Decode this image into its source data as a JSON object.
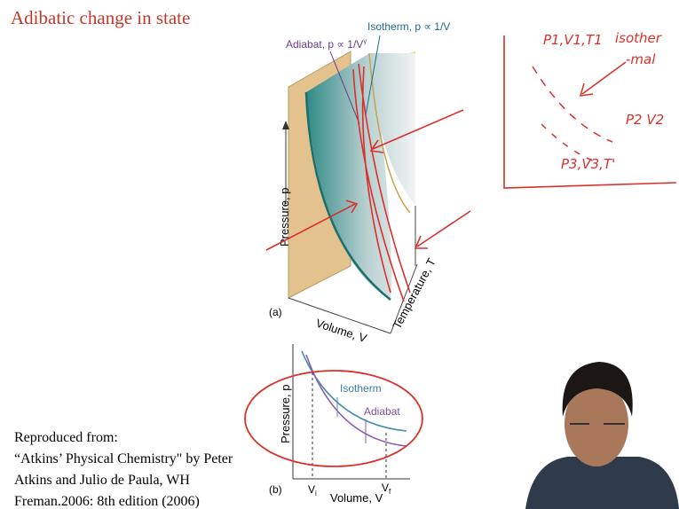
{
  "title": "Adibatic change in state",
  "figure_a": {
    "label": "(a)",
    "isotherm_label": "Isotherm, p ∝ 1/V",
    "adiabat_label": {
      "main": "Adiabat, p ∝ 1/V",
      "sup": "γ"
    },
    "y_axis": "Pressure, p",
    "x_axis": "Volume, V",
    "z_axis": "Temperature, T"
  },
  "figure_b": {
    "label": "(b)",
    "isotherm_label": "Isotherm",
    "adiabat_label": "Adiabat",
    "y_axis": "Pressure, p",
    "x_axis": "Volume, V",
    "v_initial": {
      "main": "V",
      "sub": "i"
    },
    "v_final": {
      "main": "V",
      "sub": "f"
    }
  },
  "citation": [
    "Reproduced from:",
    "“Atkins’ Physical Chemistry\" by Peter",
    "Atkins and Julio de Paula, WH",
    "Freman.2006: 8th edition (2006)"
  ],
  "handwritten": {
    "state1": "P1,V1,T1",
    "note1": "isother",
    "note2": "-mal",
    "state2": "P2 V2",
    "state3": "P3,V3,T'"
  }
}
